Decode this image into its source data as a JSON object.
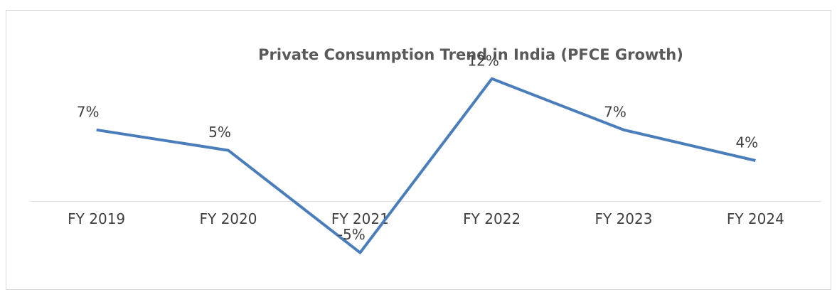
{
  "chart_data": {
    "type": "line",
    "title": "Private Consumption Trend in India (PFCE Growth)",
    "categories": [
      "FY 2019",
      "FY 2020",
      "FY 2021",
      "FY 2022",
      "FY 2023",
      "FY 2024"
    ],
    "values": [
      7,
      5,
      -5,
      12,
      7,
      4
    ],
    "value_labels": [
      "7%",
      "5%",
      "-5%",
      "12%",
      "7%",
      "4%"
    ],
    "color": "#4a7ebb",
    "ylim": [
      -6,
      14
    ]
  }
}
